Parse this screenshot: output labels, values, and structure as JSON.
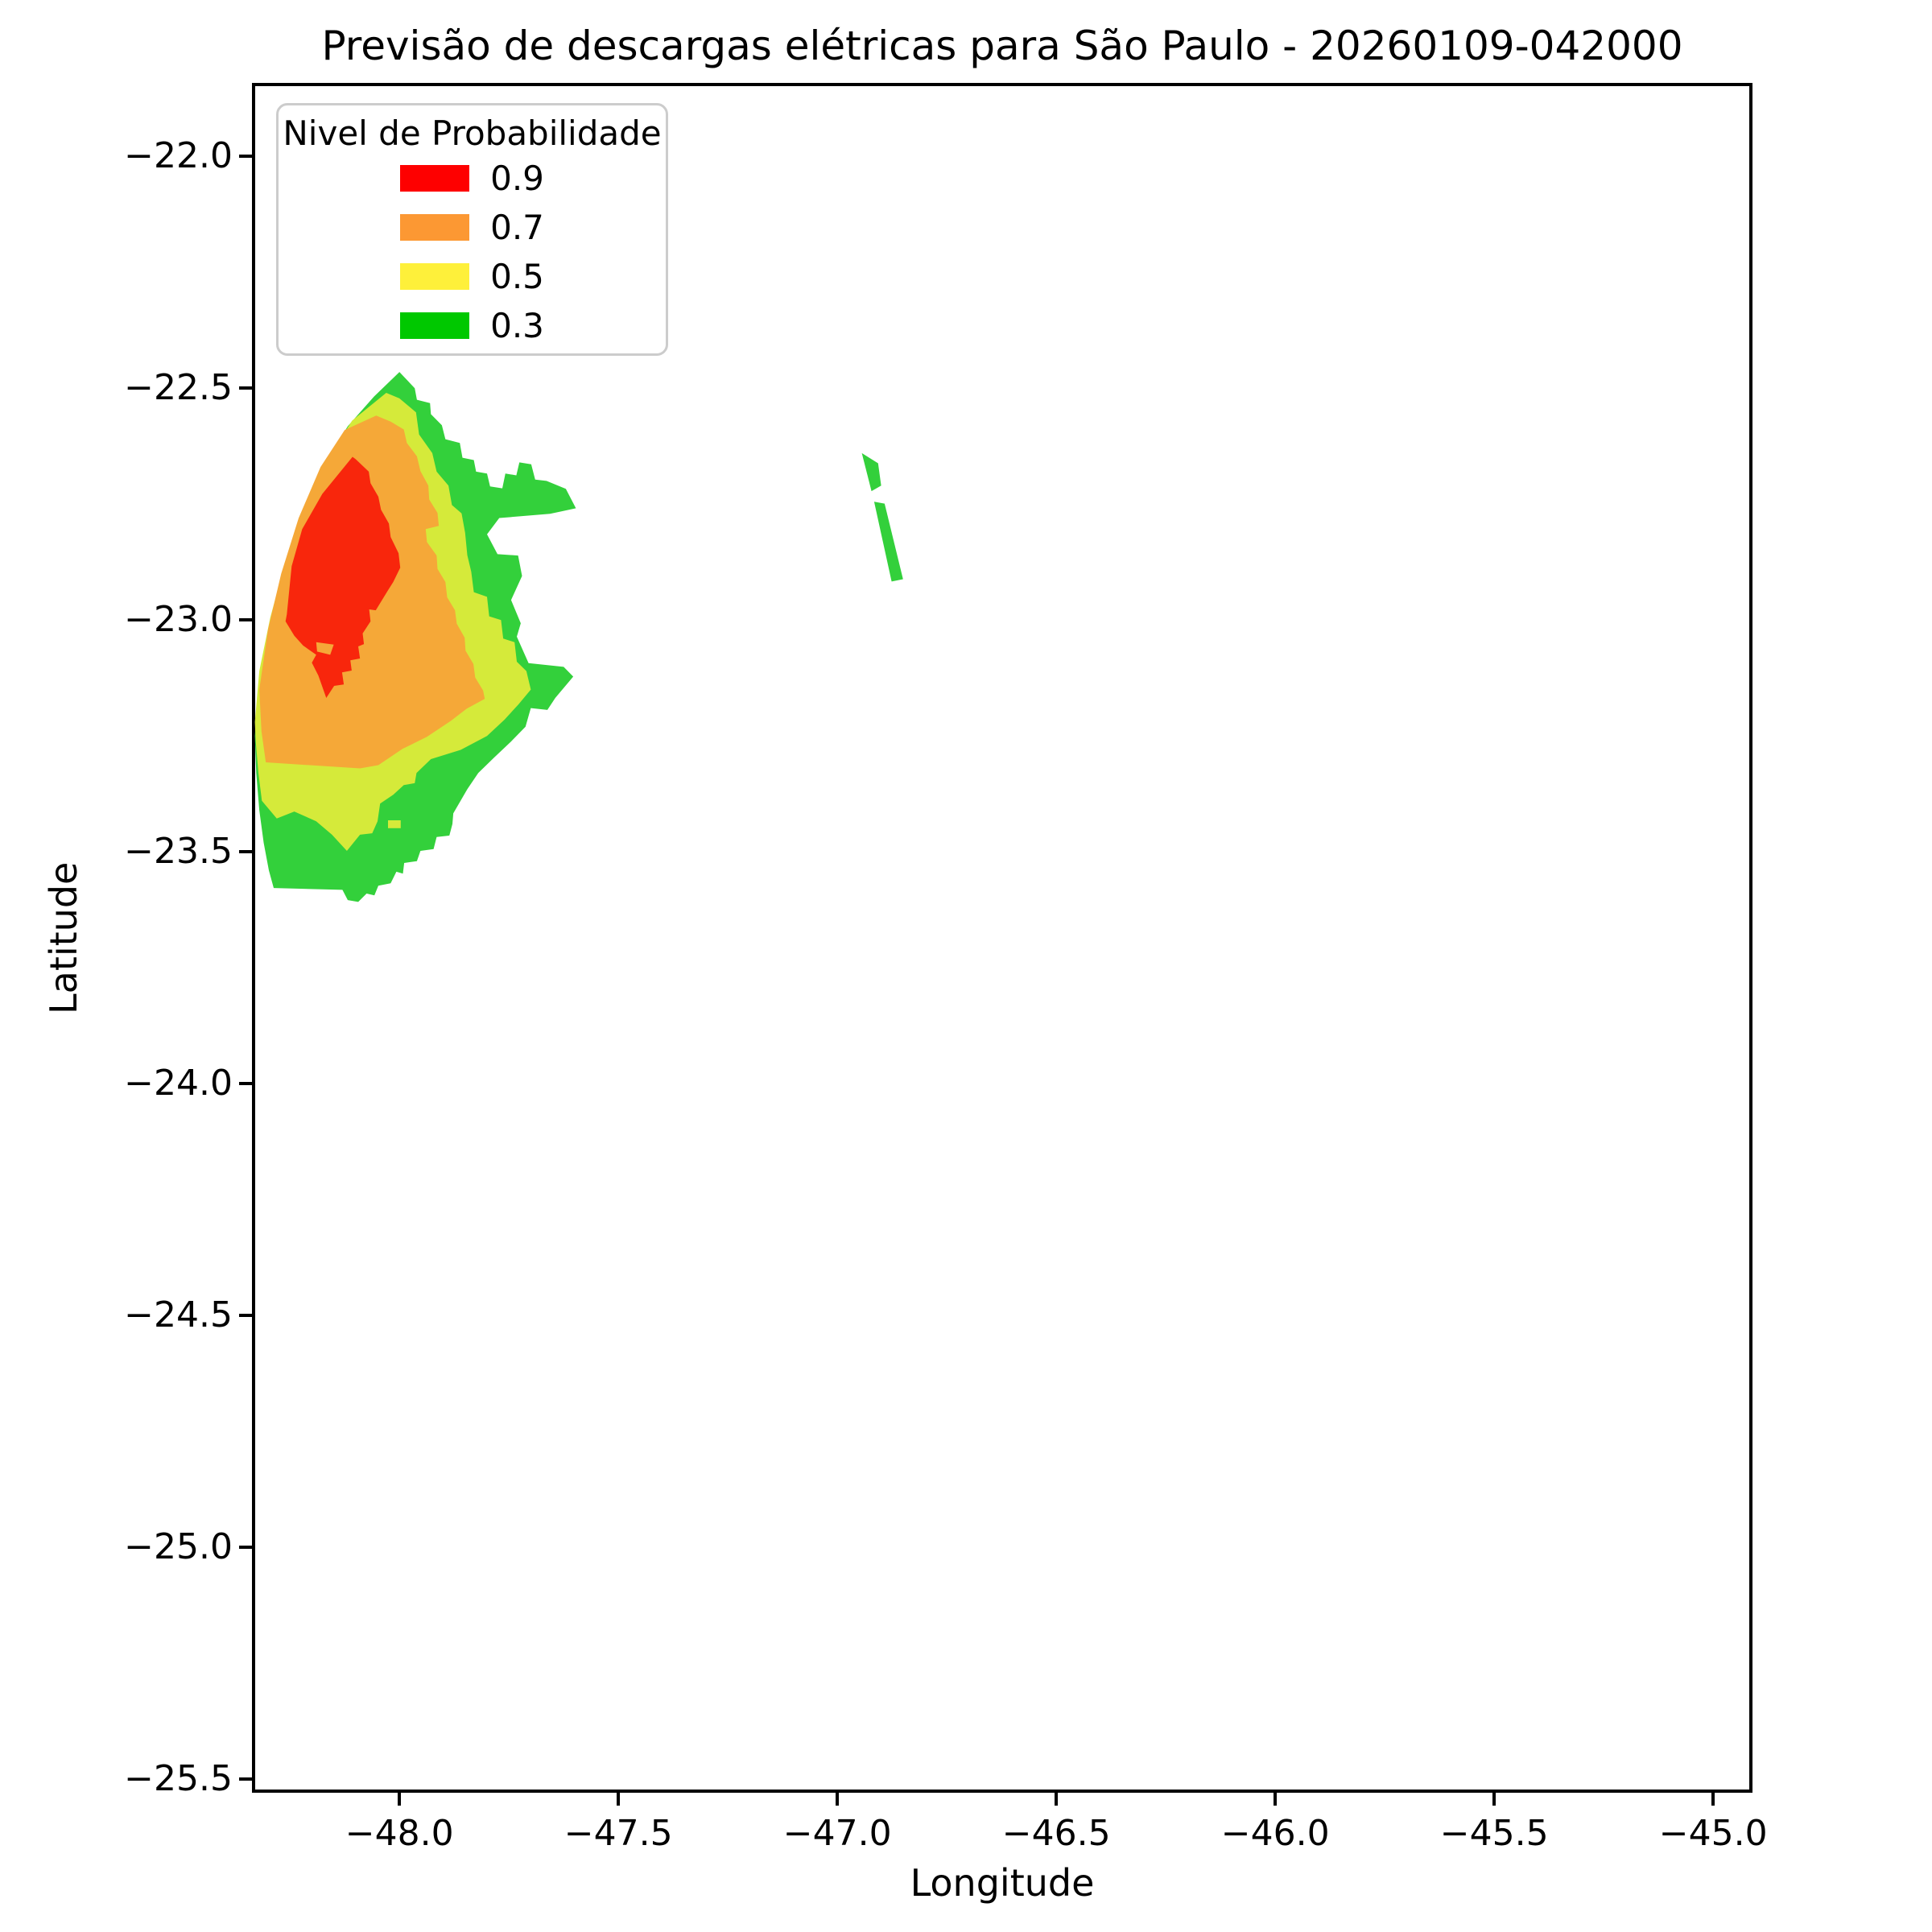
{
  "chart_data": {
    "type": "filled_contour_map",
    "title": "Previsão de descargas elétricas para São Paulo - 20260109-042000",
    "xlabel": "Longitude",
    "ylabel": "Latitude",
    "xlim": [
      -48.333,
      -44.914
    ],
    "ylim": [
      -25.526,
      -21.845
    ],
    "grid": false,
    "background": "#ffffff",
    "x_ticks": {
      "values": [
        -48.0,
        -47.5,
        -47.0,
        -46.5,
        -46.0,
        -45.5,
        -45.0
      ],
      "labels": [
        "−48.0",
        "−47.5",
        "−47.0",
        "−46.5",
        "−46.0",
        "−45.5",
        "−45.0"
      ]
    },
    "y_ticks": {
      "values": [
        -22.0,
        -22.5,
        -23.0,
        -23.5,
        -24.0,
        -24.5,
        -25.0,
        -25.5
      ],
      "labels": [
        "−22.0",
        "−22.5",
        "−23.0",
        "−23.5",
        "−24.0",
        "−24.5",
        "−25.0",
        "−25.5"
      ]
    },
    "legend": {
      "title": "Nivel de Probabilidade",
      "position": "upper left",
      "entries": [
        {
          "label": "0.9",
          "color": "#FE0000"
        },
        {
          "label": "0.7",
          "color": "#FC9833"
        },
        {
          "label": "0.5",
          "color": "#FEF03A"
        },
        {
          "label": "0.3",
          "color": "#00C800"
        }
      ]
    },
    "contour_levels": [
      0.3,
      0.5,
      0.7,
      0.9
    ],
    "region_fill_colors": {
      "0.3": "#33D03B",
      "0.5": "#D5EA3A",
      "0.7": "#F5A838",
      "0.9": "#F8260C"
    },
    "regions": [
      {
        "name": "region-p03-main",
        "level": 0.3,
        "polygon": [
          [
            -48.0,
            -22.465
          ],
          [
            -47.965,
            -22.5
          ],
          [
            -47.96,
            -22.525
          ],
          [
            -47.93,
            -22.532
          ],
          [
            -47.928,
            -22.556
          ],
          [
            -47.903,
            -22.58
          ],
          [
            -47.895,
            -22.61
          ],
          [
            -47.862,
            -22.618
          ],
          [
            -47.856,
            -22.65
          ],
          [
            -47.83,
            -22.655
          ],
          [
            -47.825,
            -22.68
          ],
          [
            -47.8,
            -22.684
          ],
          [
            -47.793,
            -22.712
          ],
          [
            -47.765,
            -22.716
          ],
          [
            -47.758,
            -22.684
          ],
          [
            -47.733,
            -22.688
          ],
          [
            -47.726,
            -22.66
          ],
          [
            -47.699,
            -22.664
          ],
          [
            -47.69,
            -22.697
          ],
          [
            -47.664,
            -22.7
          ],
          [
            -47.62,
            -22.717
          ],
          [
            -47.597,
            -22.759
          ],
          [
            -47.656,
            -22.771
          ],
          [
            -47.772,
            -22.78
          ],
          [
            -47.8,
            -22.815
          ],
          [
            -47.776,
            -22.858
          ],
          [
            -47.729,
            -22.861
          ],
          [
            -47.72,
            -22.905
          ],
          [
            -47.745,
            -22.957
          ],
          [
            -47.723,
            -23.007
          ],
          [
            -47.732,
            -23.036
          ],
          [
            -47.705,
            -23.093
          ],
          [
            -47.625,
            -23.101
          ],
          [
            -47.603,
            -23.122
          ],
          [
            -47.644,
            -23.168
          ],
          [
            -47.662,
            -23.194
          ],
          [
            -47.7,
            -23.19
          ],
          [
            -47.712,
            -23.23
          ],
          [
            -47.745,
            -23.262
          ],
          [
            -47.785,
            -23.298
          ],
          [
            -47.82,
            -23.33
          ],
          [
            -47.845,
            -23.365
          ],
          [
            -47.877,
            -23.417
          ],
          [
            -47.879,
            -23.44
          ],
          [
            -47.886,
            -23.465
          ],
          [
            -47.915,
            -23.468
          ],
          [
            -47.922,
            -23.494
          ],
          [
            -47.952,
            -23.498
          ],
          [
            -47.96,
            -23.52
          ],
          [
            -47.989,
            -23.524
          ],
          [
            -47.992,
            -23.547
          ],
          [
            -48.007,
            -23.543
          ],
          [
            -48.02,
            -23.568
          ],
          [
            -48.048,
            -23.573
          ],
          [
            -48.057,
            -23.594
          ],
          [
            -48.075,
            -23.59
          ],
          [
            -48.094,
            -23.608
          ],
          [
            -48.118,
            -23.604
          ],
          [
            -48.13,
            -23.582
          ],
          [
            -48.287,
            -23.578
          ],
          [
            -48.298,
            -23.54
          ],
          [
            -48.31,
            -23.48
          ],
          [
            -48.32,
            -23.41
          ],
          [
            -48.327,
            -23.33
          ],
          [
            -48.33,
            -23.25
          ],
          [
            -48.322,
            -23.14
          ],
          [
            -48.3,
            -23.02
          ],
          [
            -48.268,
            -22.9
          ],
          [
            -48.228,
            -22.785
          ],
          [
            -48.178,
            -22.675
          ],
          [
            -48.118,
            -22.582
          ],
          [
            -48.058,
            -22.518
          ]
        ]
      },
      {
        "name": "region-p05-main",
        "level": 0.5,
        "polygon": [
          [
            -48.03,
            -22.51
          ],
          [
            -48.0,
            -22.522
          ],
          [
            -47.962,
            -22.552
          ],
          [
            -47.955,
            -22.6
          ],
          [
            -47.925,
            -22.64
          ],
          [
            -47.915,
            -22.68
          ],
          [
            -47.888,
            -22.71
          ],
          [
            -47.88,
            -22.752
          ],
          [
            -47.858,
            -22.77
          ],
          [
            -47.85,
            -22.812
          ],
          [
            -47.845,
            -22.86
          ],
          [
            -47.836,
            -22.896
          ],
          [
            -47.83,
            -22.94
          ],
          [
            -47.8,
            -22.95
          ],
          [
            -47.795,
            -22.992
          ],
          [
            -47.768,
            -23.0
          ],
          [
            -47.763,
            -23.04
          ],
          [
            -47.737,
            -23.048
          ],
          [
            -47.732,
            -23.09
          ],
          [
            -47.71,
            -23.11
          ],
          [
            -47.7,
            -23.15
          ],
          [
            -47.728,
            -23.182
          ],
          [
            -47.76,
            -23.215
          ],
          [
            -47.8,
            -23.25
          ],
          [
            -47.86,
            -23.28
          ],
          [
            -47.928,
            -23.3
          ],
          [
            -47.961,
            -23.33
          ],
          [
            -47.965,
            -23.352
          ],
          [
            -47.99,
            -23.356
          ],
          [
            -48.014,
            -23.377
          ],
          [
            -48.044,
            -23.396
          ],
          [
            -48.05,
            -23.434
          ],
          [
            -48.062,
            -23.46
          ],
          [
            -48.09,
            -23.463
          ],
          [
            -48.12,
            -23.498
          ],
          [
            -48.154,
            -23.463
          ],
          [
            -48.19,
            -23.434
          ],
          [
            -48.24,
            -23.413
          ],
          [
            -48.28,
            -23.428
          ],
          [
            -48.314,
            -23.39
          ],
          [
            -48.322,
            -23.33
          ],
          [
            -48.328,
            -23.262
          ],
          [
            -48.33,
            -23.22
          ],
          [
            -48.32,
            -23.11
          ],
          [
            -48.295,
            -22.995
          ],
          [
            -48.262,
            -22.88
          ],
          [
            -48.22,
            -22.768
          ],
          [
            -48.168,
            -22.66
          ],
          [
            -48.108,
            -22.57
          ]
        ]
      },
      {
        "name": "region-p07-main",
        "level": 0.7,
        "polygon": [
          [
            -48.053,
            -22.559
          ],
          [
            -48.02,
            -22.572
          ],
          [
            -47.99,
            -22.589
          ],
          [
            -47.983,
            -22.618
          ],
          [
            -47.96,
            -22.647
          ],
          [
            -47.952,
            -22.679
          ],
          [
            -47.934,
            -22.71
          ],
          [
            -47.932,
            -22.74
          ],
          [
            -47.913,
            -22.769
          ],
          [
            -47.91,
            -22.797
          ],
          [
            -47.94,
            -22.804
          ],
          [
            -47.937,
            -22.832
          ],
          [
            -47.915,
            -22.861
          ],
          [
            -47.913,
            -22.89
          ],
          [
            -47.895,
            -22.918
          ],
          [
            -47.891,
            -22.951
          ],
          [
            -47.873,
            -22.979
          ],
          [
            -47.869,
            -23.008
          ],
          [
            -47.851,
            -23.038
          ],
          [
            -47.849,
            -23.066
          ],
          [
            -47.831,
            -23.095
          ],
          [
            -47.827,
            -23.124
          ],
          [
            -47.809,
            -23.152
          ],
          [
            -47.805,
            -23.17
          ],
          [
            -47.846,
            -23.191
          ],
          [
            -47.882,
            -23.217
          ],
          [
            -47.937,
            -23.252
          ],
          [
            -47.993,
            -23.278
          ],
          [
            -48.048,
            -23.313
          ],
          [
            -48.09,
            -23.32
          ],
          [
            -48.305,
            -23.307
          ],
          [
            -48.315,
            -23.24
          ],
          [
            -48.32,
            -23.15
          ],
          [
            -48.3,
            -23.02
          ],
          [
            -48.27,
            -22.9
          ],
          [
            -48.23,
            -22.78
          ],
          [
            -48.18,
            -22.67
          ],
          [
            -48.125,
            -22.59
          ]
        ]
      },
      {
        "name": "region-p09-main",
        "level": 0.9,
        "polygon": [
          [
            -48.107,
            -22.648
          ],
          [
            -48.1,
            -22.653
          ],
          [
            -48.07,
            -22.68
          ],
          [
            -48.066,
            -22.705
          ],
          [
            -48.048,
            -22.734
          ],
          [
            -48.042,
            -22.762
          ],
          [
            -48.024,
            -22.792
          ],
          [
            -48.02,
            -22.821
          ],
          [
            -48.002,
            -22.856
          ],
          [
            -47.998,
            -22.887
          ],
          [
            -48.014,
            -22.918
          ],
          [
            -48.026,
            -22.936
          ],
          [
            -48.054,
            -22.979
          ],
          [
            -48.069,
            -22.977
          ],
          [
            -48.066,
            -23.003
          ],
          [
            -48.084,
            -23.029
          ],
          [
            -48.081,
            -23.052
          ],
          [
            -48.094,
            -23.057
          ],
          [
            -48.09,
            -23.083
          ],
          [
            -48.112,
            -23.087
          ],
          [
            -48.109,
            -23.109
          ],
          [
            -48.131,
            -23.113
          ],
          [
            -48.127,
            -23.139
          ],
          [
            -48.149,
            -23.142
          ],
          [
            -48.167,
            -23.168
          ],
          [
            -48.185,
            -23.12
          ],
          [
            -48.2,
            -23.092
          ],
          [
            -48.19,
            -23.075
          ],
          [
            -48.22,
            -23.055
          ],
          [
            -48.24,
            -23.034
          ],
          [
            -48.26,
            -23.003
          ],
          [
            -48.257,
            -22.988
          ],
          [
            -48.246,
            -22.884
          ],
          [
            -48.222,
            -22.804
          ],
          [
            -48.176,
            -22.728
          ]
        ]
      },
      {
        "name": "region-p07-notch",
        "level": 0.7,
        "polygon": [
          [
            -48.19,
            -23.048
          ],
          [
            -48.15,
            -23.053
          ],
          [
            -48.158,
            -23.075
          ],
          [
            -48.188,
            -23.068
          ]
        ]
      },
      {
        "name": "region-p05-patch-a",
        "level": 0.5,
        "polygon": [
          [
            -47.763,
            -23.105
          ],
          [
            -47.734,
            -23.105
          ],
          [
            -47.734,
            -23.12
          ],
          [
            -47.763,
            -23.12
          ]
        ]
      },
      {
        "name": "region-p05-patch-b",
        "level": 0.5,
        "polygon": [
          [
            -48.026,
            -23.432
          ],
          [
            -47.997,
            -23.432
          ],
          [
            -47.997,
            -23.449
          ],
          [
            -48.026,
            -23.449
          ]
        ]
      },
      {
        "name": "region-p03-sliver-a",
        "level": 0.3,
        "polygon": [
          [
            -46.944,
            -22.64
          ],
          [
            -46.907,
            -22.662
          ],
          [
            -46.9,
            -22.71
          ],
          [
            -46.922,
            -22.722
          ]
        ]
      },
      {
        "name": "region-p03-sliver-b",
        "level": 0.3,
        "polygon": [
          [
            -46.916,
            -22.745
          ],
          [
            -46.892,
            -22.749
          ],
          [
            -46.85,
            -22.912
          ],
          [
            -46.876,
            -22.917
          ]
        ]
      }
    ]
  }
}
